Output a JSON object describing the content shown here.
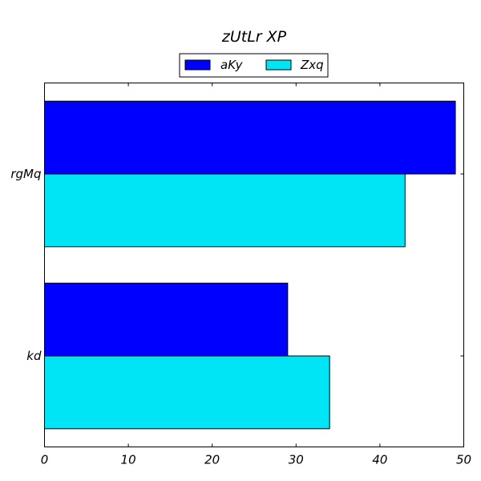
{
  "chart_data": {
    "type": "bar",
    "orientation": "horizontal",
    "title": "zUtLr XP",
    "xlabel": "",
    "ylabel": "",
    "categories": [
      "kd",
      "rgMq"
    ],
    "series": [
      {
        "name": "aKy",
        "color": "#0000ff",
        "values": [
          29,
          49
        ]
      },
      {
        "name": "Zxq",
        "color": "#00e5f5",
        "values": [
          34,
          43
        ]
      }
    ],
    "xlim": [
      0,
      50
    ],
    "xticks": [
      0,
      10,
      20,
      30,
      40,
      50
    ],
    "grid": false,
    "legend_position": "top-center"
  }
}
